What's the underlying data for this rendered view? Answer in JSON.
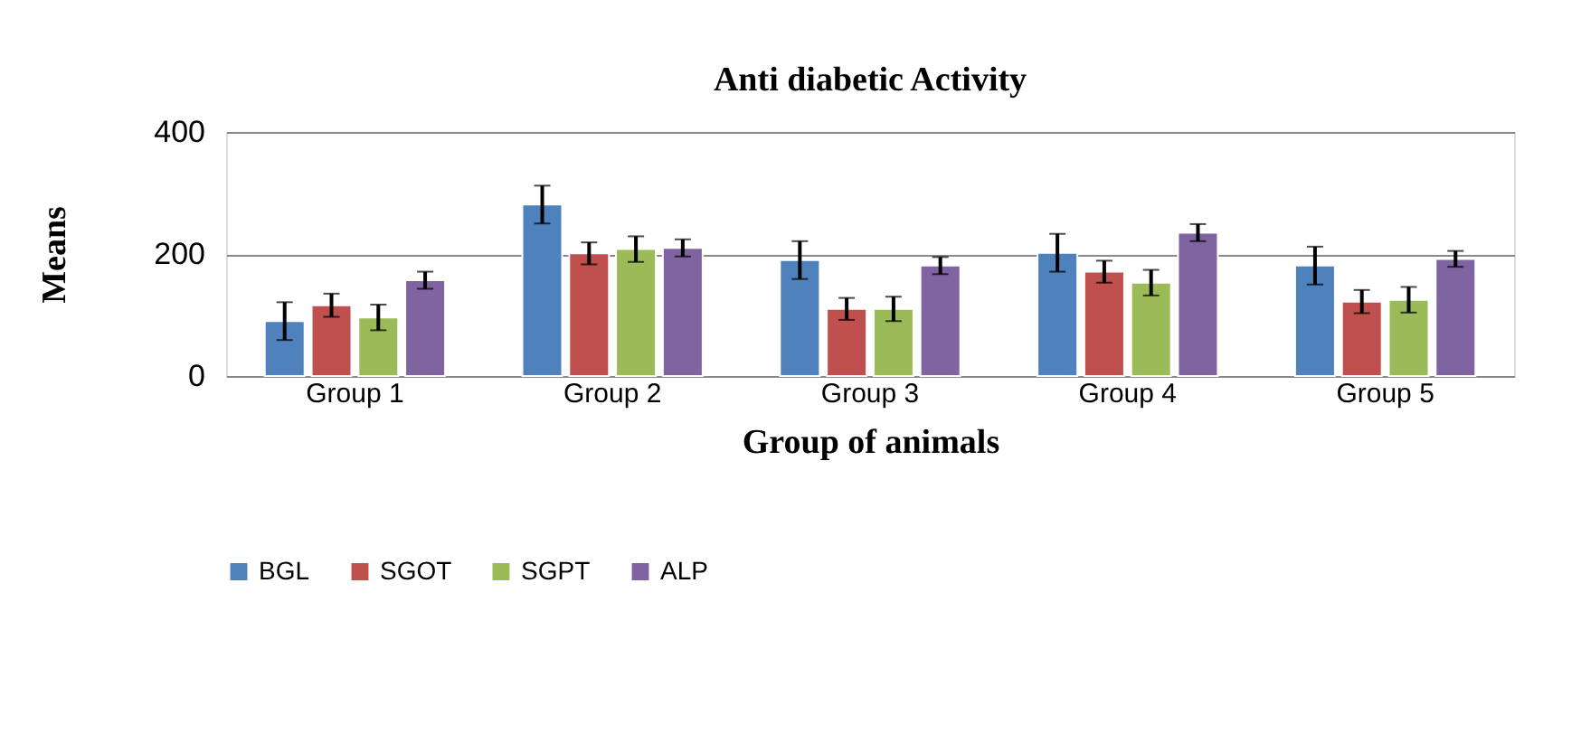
{
  "chart_data": {
    "type": "bar",
    "title": "Anti diabetic Activity",
    "xlabel": "Group of animals",
    "ylabel": "Means",
    "categories": [
      "Group 1",
      "Group 2",
      "Group 3",
      "Group 4",
      "Group 5"
    ],
    "series": [
      {
        "name": "BGL",
        "color": "#4f81bd",
        "values": [
          90,
          281,
          190,
          202,
          181
        ],
        "errors": [
          31,
          31,
          31,
          31,
          31
        ]
      },
      {
        "name": "SGOT",
        "color": "#c0504d",
        "values": [
          116,
          201,
          110,
          171,
          122
        ],
        "errors": [
          19,
          18,
          18,
          18,
          19
        ]
      },
      {
        "name": "SGPT",
        "color": "#9bbb59",
        "values": [
          96,
          208,
          110,
          153,
          125
        ],
        "errors": [
          21,
          21,
          20,
          21,
          21
        ]
      },
      {
        "name": "ALP",
        "color": "#8064a2",
        "values": [
          157,
          210,
          181,
          235,
          192
        ],
        "errors": [
          14,
          14,
          14,
          14,
          13
        ]
      }
    ],
    "ylim": [
      0,
      400
    ],
    "yticks": [
      0,
      200,
      400
    ],
    "grid": "y",
    "legend": "bottom"
  }
}
